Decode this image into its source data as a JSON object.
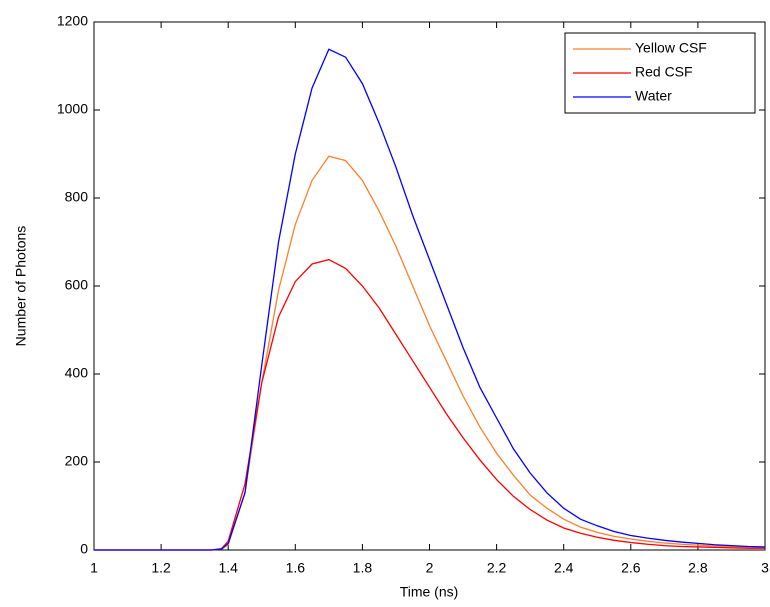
{
  "chart_data": {
    "type": "line",
    "x_label": "Time (ns)",
    "y_label": "Number of Photons",
    "x": [
      1,
      1.1,
      1.2,
      1.3,
      1.35,
      1.38,
      1.4,
      1.45,
      1.5,
      1.55,
      1.6,
      1.65,
      1.7,
      1.75,
      1.8,
      1.85,
      1.9,
      1.95,
      2,
      2.05,
      2.1,
      2.15,
      2.2,
      2.25,
      2.3,
      2.35,
      2.4,
      2.45,
      2.5,
      2.55,
      2.6,
      2.65,
      2.7,
      2.75,
      2.8,
      2.85,
      2.9,
      2.95,
      3
    ],
    "series": [
      {
        "name": "Yellow CSF",
        "color": "#ff7f2a",
        "values": [
          0,
          0,
          0,
          0,
          0,
          2,
          12,
          130,
          380,
          590,
          740,
          840,
          895,
          885,
          840,
          770,
          690,
          600,
          510,
          430,
          350,
          280,
          220,
          170,
          125,
          95,
          70,
          52,
          40,
          31,
          25,
          20,
          16,
          13,
          11,
          9,
          8,
          7,
          6
        ]
      },
      {
        "name": "Red CSF",
        "color": "#ff0000",
        "values": [
          0,
          0,
          0,
          0,
          0,
          3,
          20,
          150,
          380,
          530,
          610,
          650,
          660,
          640,
          600,
          550,
          490,
          430,
          370,
          310,
          255,
          205,
          160,
          122,
          92,
          68,
          50,
          38,
          29,
          22,
          17,
          13,
          10,
          8,
          7,
          6,
          5,
          4,
          4
        ]
      },
      {
        "name": "Water",
        "color": "#0000ff",
        "values": [
          0,
          0,
          0,
          0,
          0,
          2,
          15,
          130,
          420,
          700,
          900,
          1050,
          1138,
          1120,
          1060,
          970,
          870,
          760,
          660,
          560,
          460,
          370,
          300,
          230,
          175,
          130,
          95,
          70,
          55,
          42,
          33,
          27,
          22,
          18,
          15,
          12,
          10,
          8,
          7
        ]
      }
    ],
    "xlim": [
      1,
      3
    ],
    "xticks": [
      1,
      1.2,
      1.4,
      1.6,
      1.8,
      2,
      2.2,
      2.4,
      2.6,
      2.8,
      3
    ],
    "ylim": [
      0,
      1200
    ],
    "yticks": [
      0,
      200,
      400,
      600,
      800,
      1000,
      1200
    ],
    "grid": false,
    "legend_position": "upper-right"
  }
}
